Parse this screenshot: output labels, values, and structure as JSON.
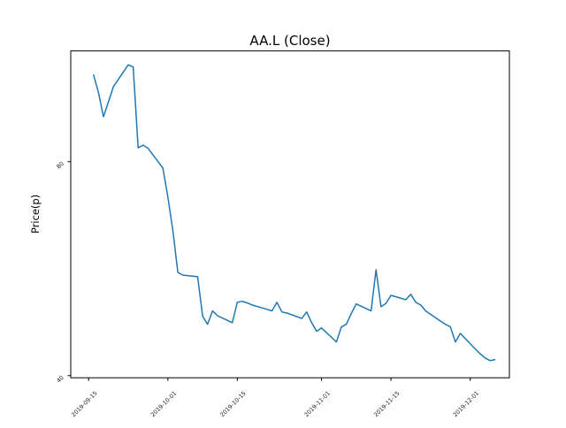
{
  "chart_data": {
    "type": "line",
    "title": "AA.L (Close)",
    "xlabel": "",
    "ylabel": "Price(p)",
    "grid": false,
    "legend": false,
    "line_color": "#1f77b4",
    "axis_color": "#000000",
    "tick_label_color": "#1a1a1a",
    "background_color": "#ffffff",
    "tick_label_rotation_deg": 45,
    "x_base_date": "2019-10-01",
    "xlim_days_from_base": [
      -19.6,
      68.9
    ],
    "ylim": [
      39.6,
      100.7
    ],
    "x_ticks": [
      {
        "label": "2019-09-15",
        "days_from_base": -16
      },
      {
        "label": "2019-10-01",
        "days_from_base": 0
      },
      {
        "label": "2019-10-15",
        "days_from_base": 14
      },
      {
        "label": "2019-11-01",
        "days_from_base": 31
      },
      {
        "label": "2019-11-15",
        "days_from_base": 45
      },
      {
        "label": "2019-12-01",
        "days_from_base": 61
      }
    ],
    "y_ticks": [
      {
        "label": "40",
        "value": 40
      },
      {
        "label": "80",
        "value": 80
      }
    ],
    "series": [
      {
        "name": "AA.L Close",
        "dates": [
          "2019-09-16",
          "2019-09-17",
          "2019-09-18",
          "2019-09-19",
          "2019-09-20",
          "2019-09-23",
          "2019-09-24",
          "2019-09-25",
          "2019-09-26",
          "2019-09-27",
          "2019-09-30",
          "2019-10-01",
          "2019-10-02",
          "2019-10-03",
          "2019-10-04",
          "2019-10-07",
          "2019-10-08",
          "2019-10-09",
          "2019-10-10",
          "2019-10-11",
          "2019-10-14",
          "2019-10-15",
          "2019-10-16",
          "2019-10-17",
          "2019-10-18",
          "2019-10-21",
          "2019-10-22",
          "2019-10-23",
          "2019-10-24",
          "2019-10-25",
          "2019-10-28",
          "2019-10-29",
          "2019-10-30",
          "2019-10-31",
          "2019-11-01",
          "2019-11-04",
          "2019-11-05",
          "2019-11-06",
          "2019-11-07",
          "2019-11-08",
          "2019-11-11",
          "2019-11-12",
          "2019-11-13",
          "2019-11-14",
          "2019-11-15",
          "2019-11-18",
          "2019-11-19",
          "2019-11-20",
          "2019-11-21",
          "2019-11-22",
          "2019-11-25",
          "2019-11-26",
          "2019-11-27",
          "2019-11-28",
          "2019-11-29",
          "2019-12-02",
          "2019-12-03",
          "2019-12-04",
          "2019-12-05",
          "2019-12-06"
        ],
        "values": [
          96.2,
          92.9,
          88.4,
          91.2,
          94.0,
          98.1,
          97.7,
          82.6,
          83.1,
          82.5,
          78.8,
          73.4,
          67.1,
          59.3,
          58.8,
          58.5,
          51.1,
          49.6,
          52.1,
          51.2,
          49.9,
          53.7,
          53.9,
          53.6,
          53.2,
          52.4,
          52.1,
          53.7,
          51.9,
          51.7,
          50.7,
          51.9,
          49.9,
          48.3,
          48.9,
          46.3,
          49.1,
          49.6,
          51.6,
          53.4,
          52.1,
          59.8,
          52.9,
          53.5,
          55.0,
          54.2,
          55.2,
          53.7,
          53.2,
          52.1,
          50.2,
          49.6,
          49.1,
          46.3,
          47.9,
          45.0,
          44.1,
          43.3,
          42.8,
          43.0
        ]
      }
    ]
  }
}
